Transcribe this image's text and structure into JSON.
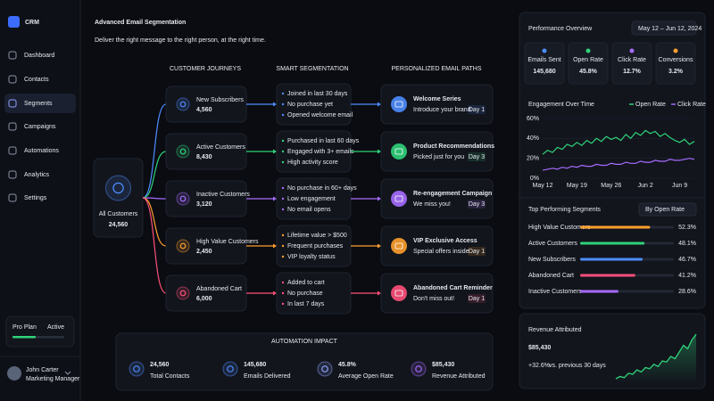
{
  "sidebar": {
    "brand": "CRM",
    "nav": [
      "Dashboard",
      "Contacts",
      "Segments",
      "Campaigns",
      "Automations",
      "Analytics",
      "Settings"
    ],
    "active_index": 2,
    "plan": {
      "name": "Pro Plan",
      "status": "Active"
    },
    "user": {
      "name": "John Carter",
      "role": "Marketing Manager"
    }
  },
  "header": {
    "title": "Advanced Email Segmentation",
    "subtitle": "Deliver the right message to the right person, at the right time."
  },
  "flow": {
    "columns": [
      "CUSTOMER JOURNEYS",
      "SMART SEGMENTATION",
      "PERSONALIZED EMAIL PATHS"
    ],
    "root": {
      "label": "All Customers",
      "count": "24,560"
    },
    "segments": [
      {
        "name": "New Subscribers",
        "count": "4,560",
        "color": "#4f8dff",
        "criteria": [
          "Joined in last 30 days",
          "No purchase yet",
          "Opened welcome email"
        ],
        "email": {
          "title": "Welcome Series",
          "subtitle": "Introduce your brand",
          "day": "Day 1"
        }
      },
      {
        "name": "Active Customers",
        "count": "8,430",
        "color": "#2fd27a",
        "criteria": [
          "Purchased in last 60 days",
          "Engaged with 3+ emails",
          "High activity score"
        ],
        "email": {
          "title": "Product Recommendations",
          "subtitle": "Picked just for you",
          "day": "Day 3"
        }
      },
      {
        "name": "Inactive Customers",
        "count": "3,120",
        "color": "#a66bff",
        "criteria": [
          "No purchase in 60+ days",
          "Low engagement",
          "No email opens"
        ],
        "email": {
          "title": "Re-engagement Campaign",
          "subtitle": "We miss you!",
          "day": "Day 3"
        }
      },
      {
        "name": "High Value Customers",
        "count": "2,450",
        "color": "#ff9f2e",
        "criteria": [
          "Lifetime value > $500",
          "Frequent purchases",
          "VIP loyalty status"
        ],
        "email": {
          "title": "VIP Exclusive Access",
          "subtitle": "Special offers inside",
          "day": "Day 1"
        }
      },
      {
        "name": "Abandoned Cart",
        "count": "6,000",
        "color": "#ff4f7b",
        "criteria": [
          "Added to cart",
          "No purchase",
          "In last 7 days"
        ],
        "email": {
          "title": "Abandoned Cart Reminder",
          "subtitle": "Don't miss out!",
          "day": "Day 1"
        }
      }
    ]
  },
  "impact": {
    "title": "AUTOMATION IMPACT",
    "items": [
      {
        "value": "24,560",
        "label": "Total Contacts",
        "color": "#4f8dff"
      },
      {
        "value": "145,680",
        "label": "Emails Delivered",
        "color": "#4f8dff"
      },
      {
        "value": "45.8%",
        "label": "Average Open Rate",
        "color": "#8ea2ff"
      },
      {
        "value": "$85,430",
        "label": "Revenue Attributed",
        "color": "#a66bff"
      }
    ]
  },
  "performance": {
    "title": "Performance Overview",
    "range": "May 12 – Jun 12, 2024",
    "kpis": [
      {
        "label": "Emails Sent",
        "value": "145,680",
        "color": "#4f8dff",
        "value_color": "#ffffff"
      },
      {
        "label": "Open Rate",
        "value": "45.8%",
        "color": "#2fd27a",
        "value_color": "#ffffff"
      },
      {
        "label": "Click Rate",
        "value": "12.7%",
        "color": "#a66bff",
        "value_color": "#ffffff"
      },
      {
        "label": "Conversions",
        "value": "3.2%",
        "color": "#ff9f2e",
        "value_color": "#ffffff"
      }
    ]
  },
  "revenue": {
    "title": "Revenue Attributed",
    "value": "$85,430",
    "change": "+32.6%",
    "note": "vs. previous 30 days"
  },
  "chart_data": [
    {
      "type": "line",
      "title": "Engagement Over Time",
      "categories": [
        "May 12",
        null,
        null,
        null,
        null,
        null,
        null,
        "May 19",
        null,
        null,
        null,
        null,
        null,
        null,
        "May 26",
        null,
        null,
        null,
        null,
        null,
        null,
        "Jun 2",
        null,
        null,
        null,
        null,
        null,
        null,
        "Jun 9",
        null,
        null,
        null
      ],
      "series": [
        {
          "name": "Open Rate",
          "color": "#2fd27a",
          "values": [
            24,
            28,
            26,
            31,
            29,
            34,
            32,
            36,
            33,
            38,
            35,
            40,
            37,
            42,
            39,
            41,
            38,
            44,
            40,
            46,
            43,
            48,
            45,
            47,
            42,
            45,
            41,
            38,
            36,
            39,
            34,
            37
          ]
        },
        {
          "name": "Click Rate",
          "color": "#a66bff",
          "values": [
            8,
            9,
            10,
            9,
            11,
            10,
            12,
            11,
            13,
            12,
            12,
            14,
            13,
            13,
            15,
            14,
            14,
            16,
            15,
            15,
            17,
            16,
            16,
            18,
            17,
            17,
            19,
            18,
            18,
            19,
            20,
            19
          ]
        }
      ],
      "ylim": [
        0,
        60
      ],
      "yticks": [
        {
          "value": 0,
          "label": "0%"
        },
        {
          "value": 20,
          "label": "20%"
        },
        {
          "value": 40,
          "label": "40%"
        },
        {
          "value": 60,
          "label": "60%"
        }
      ],
      "grid": true
    },
    {
      "type": "bar",
      "orientation": "horizontal",
      "title": "Top Performing Segments",
      "sort_label": "By Open Rate",
      "categories": [
        "High Value Customers",
        "Active Customers",
        "New Subscribers",
        "Abandoned Cart",
        "Inactive Customers"
      ],
      "values": [
        52.3,
        48.1,
        46.7,
        41.2,
        28.6
      ],
      "value_labels": [
        "52.3%",
        "48.1%",
        "46.7%",
        "41.2%",
        "28.6%"
      ],
      "colors": [
        "#ff9f2e",
        "#2fd27a",
        "#4f8dff",
        "#ff4f7b",
        "#a66bff"
      ],
      "xlim": [
        0,
        70
      ]
    },
    {
      "type": "area",
      "color": "#2fd27a",
      "values": [
        20,
        22,
        21,
        25,
        24,
        28,
        26,
        30,
        29,
        33,
        31,
        36,
        35,
        40,
        38,
        44,
        50,
        47,
        55,
        60
      ]
    }
  ]
}
